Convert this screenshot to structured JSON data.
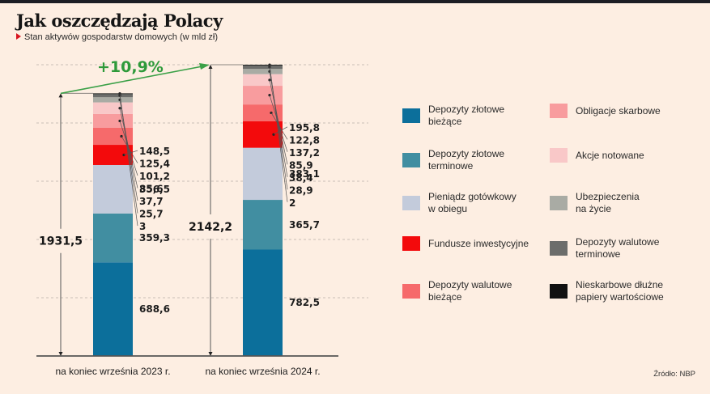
{
  "header": {
    "title": "Jak oszczędzają Polacy",
    "subtitle": "Stan aktywów gospodarstw domowych (w mld zł)"
  },
  "source": "Źródło: NBP",
  "chart_data": {
    "type": "bar",
    "stacked": true,
    "title": "Jak oszczędzają Polacy",
    "subtitle": "Stan aktywów gospodarstw domowych (w mld zł)",
    "xlabel": "",
    "ylabel": "mld zł",
    "grid": true,
    "legend_position": "right",
    "categories": [
      "na koniec września 2023 r.",
      "na koniec września 2024 r."
    ],
    "totals": [
      "1931,5",
      "2142,2"
    ],
    "totals_values": [
      1931.5,
      2142.2
    ],
    "change_label": "+10,9%",
    "series": [
      {
        "name": "Depozyty złotowe bieżące",
        "color": "#0c6f9b",
        "values": [
          688.6,
          782.5
        ],
        "labels": [
          "688,6",
          "782,5"
        ]
      },
      {
        "name": "Depozyty złotowe terminowe",
        "color": "#418ea1",
        "values": [
          359.3,
          365.7
        ],
        "labels": [
          "359,3",
          "365,7"
        ]
      },
      {
        "name": "Pieniądz gotówkowy w obiegu",
        "color": "#c3cbdb",
        "values": [
          356.5,
          383.1
        ],
        "labels": [
          "356,5",
          "383,1"
        ]
      },
      {
        "name": "Fundusze inwestycyjne",
        "color": "#f30a0c",
        "values": [
          148.5,
          195.8
        ],
        "labels": [
          "148,5",
          "195,8"
        ]
      },
      {
        "name": "Depozyty walutowe bieżące",
        "color": "#f66a6b",
        "values": [
          125.4,
          122.8
        ],
        "labels": [
          "125,4",
          "122,8"
        ]
      },
      {
        "name": "Obligacje skarbowe",
        "color": "#f89c9e",
        "values": [
          101.2,
          137.2
        ],
        "labels": [
          "101,2",
          "137,2"
        ]
      },
      {
        "name": "Akcje notowane",
        "color": "#f9c8c8",
        "values": [
          85.6,
          85.9
        ],
        "labels": [
          "85,6",
          "85,9"
        ]
      },
      {
        "name": "Ubezpieczenia na życie",
        "color": "#a9aba4",
        "values": [
          37.7,
          38.4
        ],
        "labels": [
          "37,7",
          "38,4"
        ]
      },
      {
        "name": "Depozyty walutowe terminowe",
        "color": "#6c6d6b",
        "values": [
          25.7,
          28.9
        ],
        "labels": [
          "25,7",
          "28,9"
        ]
      },
      {
        "name": "Nieskarbowe dłużne papiery wartościowe",
        "color": "#111111",
        "values": [
          3,
          2
        ],
        "labels": [
          "3",
          "2"
        ]
      }
    ]
  },
  "legend": {
    "left": [
      {
        "label_line1": "Depozyty złotowe",
        "label_line2": "bieżące",
        "color": "#0c6f9b"
      },
      {
        "label_line1": "Depozyty złotowe",
        "label_line2": "terminowe",
        "color": "#418ea1"
      },
      {
        "label_line1": "Pieniądz gotówkowy",
        "label_line2": "w obiegu",
        "color": "#c3cbdb"
      },
      {
        "label_line1": "Fundusze inwestycyjne",
        "label_line2": "",
        "color": "#f30a0c"
      },
      {
        "label_line1": "Depozyty walutowe",
        "label_line2": "bieżące",
        "color": "#f66a6b"
      }
    ],
    "right": [
      {
        "label_line1": "Obligacje skarbowe",
        "label_line2": "",
        "color": "#f89c9e"
      },
      {
        "label_line1": "Akcje notowane",
        "label_line2": "",
        "color": "#f9c8c8"
      },
      {
        "label_line1": "Ubezpieczenia",
        "label_line2": "na życie",
        "color": "#a9aba4"
      },
      {
        "label_line1": "Depozyty walutowe",
        "label_line2": "terminowe",
        "color": "#6c6d6b"
      },
      {
        "label_line1": "Nieskarbowe dłużne",
        "label_line2": "papiery wartościowe",
        "color": "#111111"
      }
    ]
  }
}
